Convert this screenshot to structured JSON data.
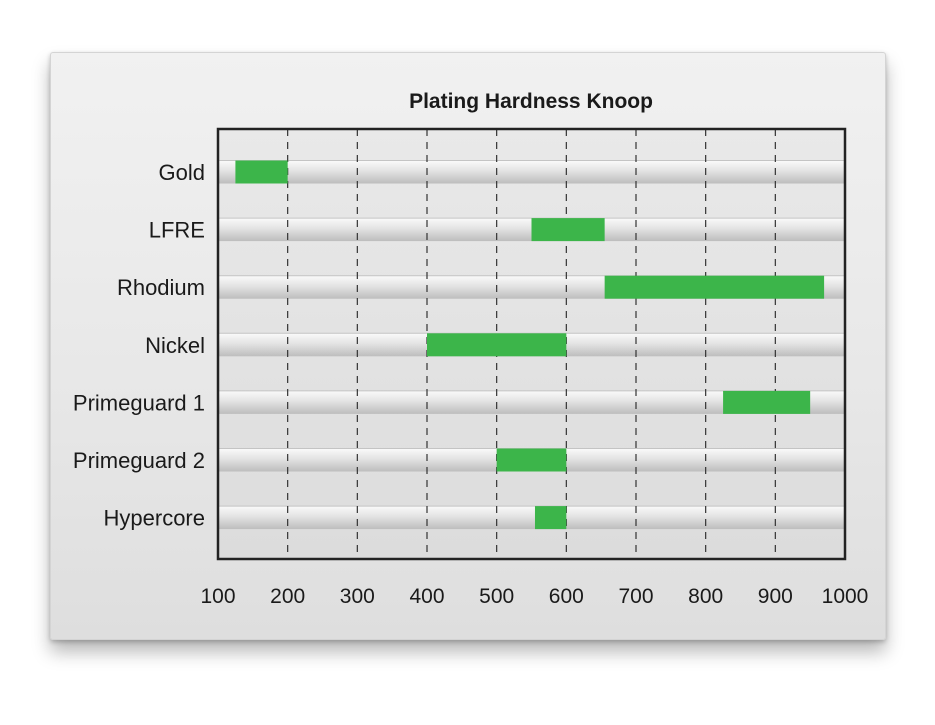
{
  "chart_data": {
    "type": "bar",
    "orientation": "horizontal",
    "style": "floating-range",
    "title": "Plating Hardness Knoop",
    "xlabel": "",
    "ylabel": "",
    "xlim": [
      100,
      1000
    ],
    "xticks": [
      100,
      200,
      300,
      400,
      500,
      600,
      700,
      800,
      900,
      1000
    ],
    "grid": "vertical-dashed",
    "categories": [
      "Gold",
      "LFRE",
      "Rhodium",
      "Nickel",
      "Primeguard 1",
      "Primeguard 2",
      "Hypercore"
    ],
    "ranges": [
      [
        125,
        200
      ],
      [
        550,
        655
      ],
      [
        655,
        970
      ],
      [
        400,
        600
      ],
      [
        825,
        950
      ],
      [
        500,
        600
      ],
      [
        555,
        600
      ]
    ],
    "colors": {
      "bar": "#3cb54a",
      "plot_border": "#222222",
      "grid": "#333333"
    }
  }
}
